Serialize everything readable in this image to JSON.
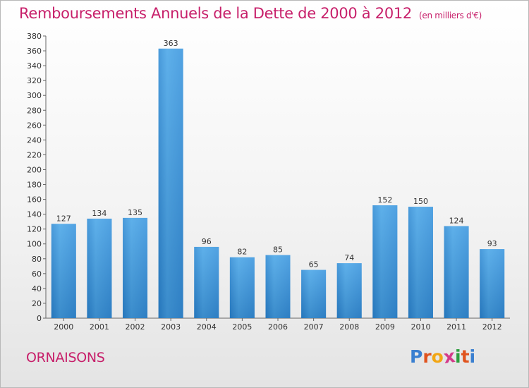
{
  "chart_data": {
    "type": "bar",
    "title": "Remboursements Annuels de la Dette de 2000 à 2012",
    "subtitle": "(en milliers d'€)",
    "categories": [
      "2000",
      "2001",
      "2002",
      "2003",
      "2004",
      "2005",
      "2006",
      "2007",
      "2008",
      "2009",
      "2010",
      "2011",
      "2012"
    ],
    "values": [
      127,
      134,
      135,
      363,
      96,
      82,
      85,
      65,
      74,
      152,
      150,
      124,
      93
    ],
    "ylim": [
      0,
      380
    ],
    "yticks": [
      0,
      20,
      40,
      60,
      80,
      100,
      120,
      140,
      160,
      180,
      200,
      220,
      240,
      260,
      280,
      300,
      320,
      340,
      360,
      380
    ],
    "grid": false,
    "bar_color": "#3d8fd6",
    "label_color": "#c71f6a"
  },
  "footer": {
    "town": "ORNAISONS",
    "logo": [
      "P",
      "r",
      "o",
      "x",
      "i",
      "t",
      "i"
    ],
    "logo_colors": [
      "#3a7fd0",
      "#e0531e",
      "#f2a614",
      "#d43a8a",
      "#2e9e3f",
      "#e0531e",
      "#3a7fd0"
    ]
  }
}
